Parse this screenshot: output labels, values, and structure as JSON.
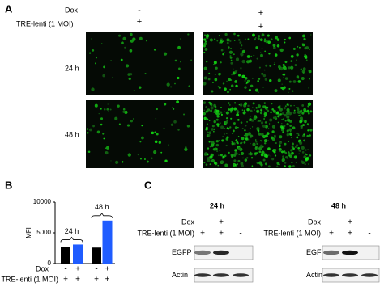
{
  "panel_a": {
    "label": "A",
    "rows": [
      {
        "label": "Dox",
        "marks": [
          "-",
          "+"
        ]
      },
      {
        "label": "TRE-lenti (1 MOI)",
        "marks": [
          "+",
          "+"
        ]
      }
    ],
    "time_labels": [
      "24 h",
      "48 h"
    ]
  },
  "chart_data": {
    "type": "bar",
    "panel_label": "B",
    "ylabel": "MFI",
    "values": [
      2700,
      3100,
      2600,
      7000
    ],
    "colors": [
      "#000000",
      "#1f5cff",
      "#000000",
      "#1f5cff"
    ],
    "ylim": [
      0,
      10000
    ],
    "yticks": [
      0,
      5000,
      10000
    ],
    "groups": [
      "24 h",
      "48 h"
    ],
    "condition_rows": [
      {
        "label": "Dox",
        "marks": [
          "-",
          "+",
          "-",
          "+"
        ]
      },
      {
        "label": "TRE-lenti (1 MOI)",
        "marks": [
          "+",
          "+",
          "+",
          "+"
        ]
      }
    ]
  },
  "panel_c": {
    "label": "C",
    "blots": [
      {
        "title": "24 h",
        "rows": [
          {
            "label": "Dox",
            "marks": [
              "-",
              "+",
              "-"
            ]
          },
          {
            "label": "TRE-lenti (1 MOI)",
            "marks": [
              "+",
              "+",
              "-"
            ]
          }
        ],
        "bands": [
          "EGFP",
          "Actin"
        ]
      },
      {
        "title": "48 h",
        "rows": [
          {
            "label": "Dox",
            "marks": [
              "-",
              "+",
              "-"
            ]
          },
          {
            "label": "TRE-lenti (1 MOI)",
            "marks": [
              "+",
              "+",
              "-"
            ]
          }
        ],
        "bands": [
          "EGFP",
          "Actin"
        ]
      }
    ]
  }
}
